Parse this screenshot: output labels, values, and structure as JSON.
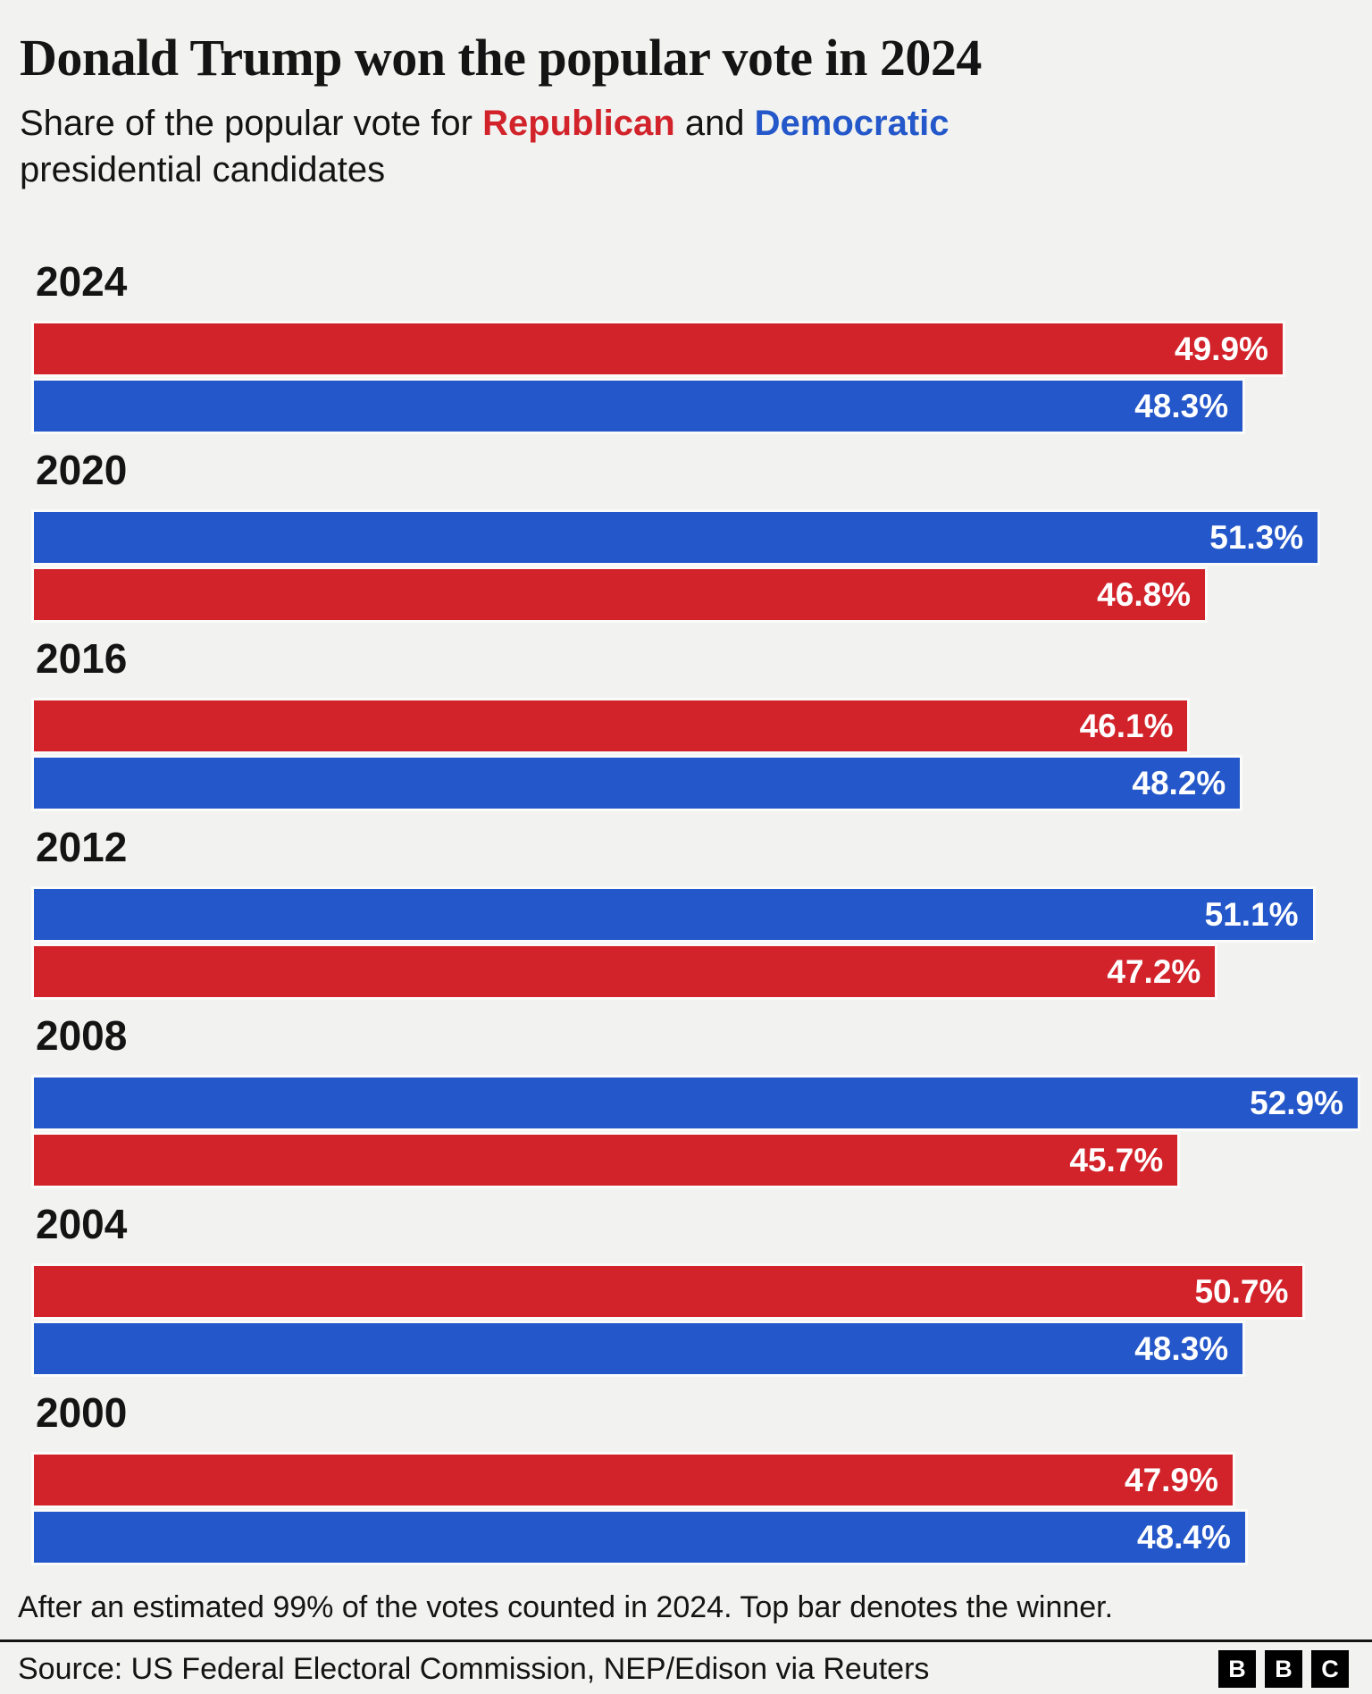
{
  "header": {
    "title": "Donald Trump won the popular vote in 2024",
    "subtitle_prefix": "Share of the popular vote for ",
    "subtitle_republican": "Republican",
    "subtitle_and": " and ",
    "subtitle_democratic": "Democratic",
    "subtitle_suffix": " presidential candidates"
  },
  "footer": {
    "footnote": "After an estimated 99% of the votes counted in 2024. Top bar denotes the winner.",
    "source": "Source: US Federal Electoral Commission, NEP/Edison via Reuters",
    "logo": [
      "B",
      "B",
      "C"
    ]
  },
  "colors": {
    "republican": "#D2232B",
    "democratic": "#2457C9",
    "background": "#F2F2F0",
    "text": "#141414",
    "bar_label": "#FFFFFF",
    "logo_block": "#000000"
  },
  "chart_data": {
    "type": "bar",
    "orientation": "horizontal",
    "unit": "%",
    "xmin": 0,
    "xmax": 52.9,
    "grid": false,
    "legend_position": "in-subtitle",
    "layout_note": "top bar in each year group denotes the winner",
    "groups": [
      {
        "year": "2024",
        "bars": [
          {
            "party": "republican",
            "value": 49.9,
            "label": "49.9%"
          },
          {
            "party": "democratic",
            "value": 48.3,
            "label": "48.3%"
          }
        ]
      },
      {
        "year": "2020",
        "bars": [
          {
            "party": "democratic",
            "value": 51.3,
            "label": "51.3%"
          },
          {
            "party": "republican",
            "value": 46.8,
            "label": "46.8%"
          }
        ]
      },
      {
        "year": "2016",
        "bars": [
          {
            "party": "republican",
            "value": 46.1,
            "label": "46.1%"
          },
          {
            "party": "democratic",
            "value": 48.2,
            "label": "48.2%"
          }
        ]
      },
      {
        "year": "2012",
        "bars": [
          {
            "party": "democratic",
            "value": 51.1,
            "label": "51.1%"
          },
          {
            "party": "republican",
            "value": 47.2,
            "label": "47.2%"
          }
        ]
      },
      {
        "year": "2008",
        "bars": [
          {
            "party": "democratic",
            "value": 52.9,
            "label": "52.9%"
          },
          {
            "party": "republican",
            "value": 45.7,
            "label": "45.7%"
          }
        ]
      },
      {
        "year": "2004",
        "bars": [
          {
            "party": "republican",
            "value": 50.7,
            "label": "50.7%"
          },
          {
            "party": "democratic",
            "value": 48.3,
            "label": "48.3%"
          }
        ]
      },
      {
        "year": "2000",
        "bars": [
          {
            "party": "republican",
            "value": 47.9,
            "label": "47.9%"
          },
          {
            "party": "democratic",
            "value": 48.4,
            "label": "48.4%"
          }
        ]
      }
    ]
  }
}
